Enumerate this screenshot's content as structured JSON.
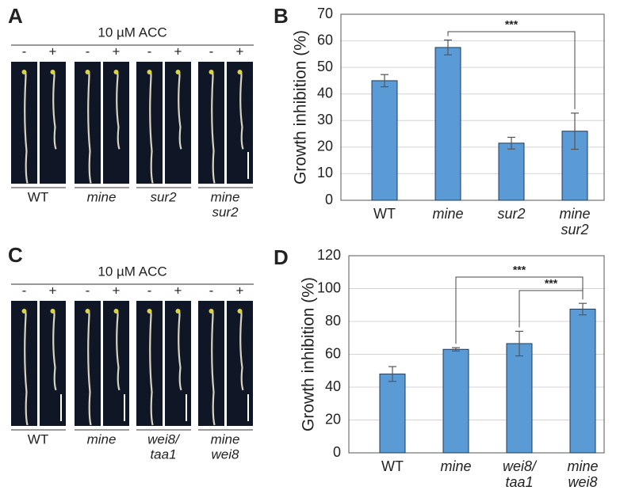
{
  "photo_panels": [
    {
      "label": "A",
      "treatment": "10 µM ACC",
      "conditions": [
        "-",
        "+"
      ],
      "genotypes": [
        [
          "WT"
        ],
        [
          "mine"
        ],
        [
          "sur2"
        ],
        [
          "mine",
          "sur2"
        ]
      ]
    },
    {
      "label": "C",
      "treatment": "10 µM ACC",
      "conditions": [
        "-",
        "+"
      ],
      "genotypes": [
        [
          "WT"
        ],
        [
          "mine"
        ],
        [
          "wei8/",
          "taa1"
        ],
        [
          "mine",
          "wei8"
        ]
      ]
    }
  ],
  "chart_data": [
    {
      "type": "bar",
      "panel": "B",
      "ylabel": "Growth inhibition (%)",
      "categories": [
        [
          "WT"
        ],
        [
          "mine"
        ],
        [
          "sur2"
        ],
        [
          "mine",
          "sur2"
        ]
      ],
      "values": [
        45,
        57.5,
        21.5,
        26
      ],
      "errors": [
        2.3,
        2.8,
        2.2,
        6.8
      ],
      "color": "#5b9bd5",
      "ylim": [
        0,
        70
      ],
      "yticks": [
        0,
        10,
        20,
        30,
        40,
        50,
        60,
        70
      ],
      "grid": true,
      "annotations": [
        {
          "text": "***"
        }
      ]
    },
    {
      "type": "bar",
      "panel": "D",
      "ylabel": "Growth inhibition (%)",
      "categories": [
        [
          "WT"
        ],
        [
          "mine"
        ],
        [
          "wei8/",
          "taa1"
        ],
        [
          "mine",
          "wei8"
        ]
      ],
      "values": [
        48,
        63,
        66.5,
        87.5
      ],
      "errors": [
        4.5,
        1,
        7.5,
        3.5
      ],
      "color": "#5b9bd5",
      "ylim": [
        0,
        120
      ],
      "yticks": [
        0,
        20,
        40,
        60,
        80,
        100,
        120
      ],
      "grid": true,
      "annotations": [
        {
          "text": "***"
        },
        {
          "text": "***"
        }
      ]
    }
  ]
}
